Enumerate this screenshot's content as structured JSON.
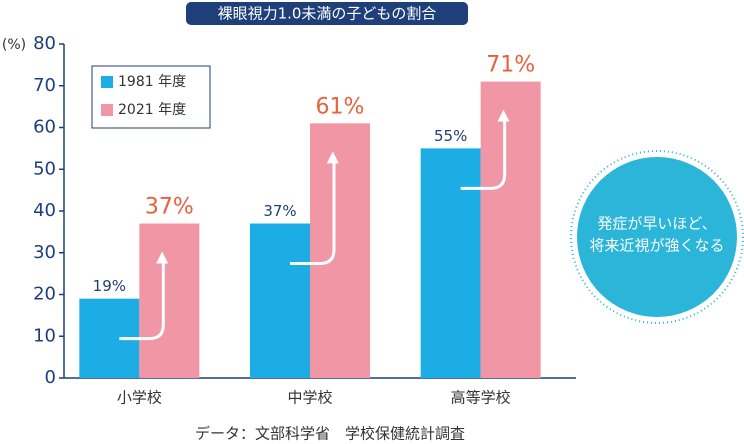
{
  "chart_data": {
    "type": "bar",
    "title": "裸眼視力1.0未満の子どもの割合",
    "y_label": "(%)",
    "categories": [
      "小学校",
      "中学校",
      "高等学校"
    ],
    "series": [
      {
        "name": "1981 年度",
        "color": "#1cade4",
        "values": [
          19,
          37,
          55
        ],
        "value_labels": [
          "19%",
          "37%",
          "55%"
        ]
      },
      {
        "name": "2021 年度",
        "color": "#f196a4",
        "values": [
          37,
          61,
          71
        ],
        "value_labels": [
          "37%",
          "61%",
          "71%"
        ]
      }
    ],
    "ylim": [
      0,
      80
    ],
    "yticks": [
      0,
      10,
      20,
      30,
      40,
      50,
      60,
      70,
      80
    ],
    "annotation": [
      "発症が早いほど、",
      "将来近視が強くなる"
    ],
    "source": "データ：文部科学省　学校保健統計調査"
  }
}
